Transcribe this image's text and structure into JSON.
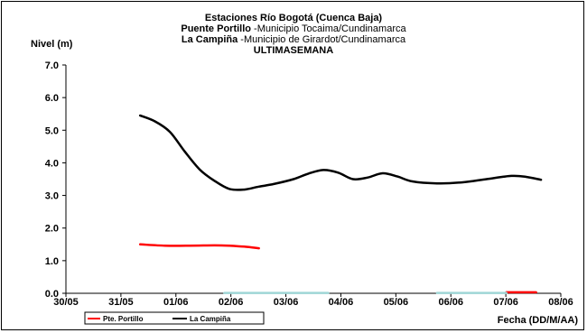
{
  "chart_data": {
    "type": "line",
    "title_lines": [
      {
        "bold": "Estaciones Río Bogotá (Cuenca Baja)",
        "normal": ""
      },
      {
        "bold": "Puente Portillo",
        "normal": " -Municipio Tocaima/Cundinamarca"
      },
      {
        "bold": "La Campiña",
        "normal": " -Municipio de Girardot/Cundinamarca"
      },
      {
        "bold": "ULTIMASEMANA",
        "normal": ""
      }
    ],
    "ylabel": "Nivel (m)",
    "xlabel": "Fecha (DD/M/AA)",
    "ylim": [
      0,
      7
    ],
    "y_ticks": [
      "0.0",
      "1.0",
      "2.0",
      "3.0",
      "4.0",
      "5.0",
      "6.0",
      "7.0"
    ],
    "xlim": [
      0,
      10
    ],
    "x_ticks": [
      "30/05",
      "31/05",
      "01/06",
      "02/06",
      "03/06",
      "04/06",
      "05/06",
      "06/06",
      "07/06",
      "08/06"
    ],
    "grid": false,
    "legend_position": "bottom-left",
    "series": [
      {
        "name": "Pte. Portillo",
        "color": "#ff0000",
        "points": [
          [
            1.5,
            1.5
          ],
          [
            2.0,
            1.46
          ],
          [
            2.5,
            1.46
          ],
          [
            3.0,
            1.47
          ],
          [
            3.3,
            1.46
          ],
          [
            3.6,
            1.43
          ],
          [
            3.9,
            1.38
          ]
        ]
      },
      {
        "name": "La Campiña",
        "color": "#000000",
        "points": [
          [
            1.5,
            5.45
          ],
          [
            1.8,
            5.27
          ],
          [
            2.1,
            4.95
          ],
          [
            2.4,
            4.35
          ],
          [
            2.7,
            3.8
          ],
          [
            3.0,
            3.45
          ],
          [
            3.3,
            3.2
          ],
          [
            3.6,
            3.18
          ],
          [
            3.9,
            3.27
          ],
          [
            4.2,
            3.35
          ],
          [
            4.6,
            3.5
          ],
          [
            4.9,
            3.67
          ],
          [
            5.2,
            3.78
          ],
          [
            5.5,
            3.7
          ],
          [
            5.8,
            3.5
          ],
          [
            6.1,
            3.55
          ],
          [
            6.4,
            3.68
          ],
          [
            6.7,
            3.58
          ],
          [
            7.0,
            3.43
          ],
          [
            7.5,
            3.37
          ],
          [
            8.0,
            3.4
          ],
          [
            8.5,
            3.5
          ],
          [
            9.0,
            3.6
          ],
          [
            9.3,
            3.57
          ],
          [
            9.6,
            3.48
          ]
        ]
      },
      {
        "name": "",
        "color": "#ff0000",
        "points": [
          [
            8.9,
            0.03
          ],
          [
            9.5,
            0.03
          ]
        ]
      },
      {
        "name": "",
        "color": "#9fd6d6",
        "points": [
          [
            3.2,
            0.01
          ],
          [
            5.3,
            0.01
          ]
        ]
      },
      {
        "name": "",
        "color": "#9fd6d6",
        "points": [
          [
            7.5,
            0.01
          ],
          [
            8.9,
            0.01
          ]
        ]
      }
    ]
  }
}
